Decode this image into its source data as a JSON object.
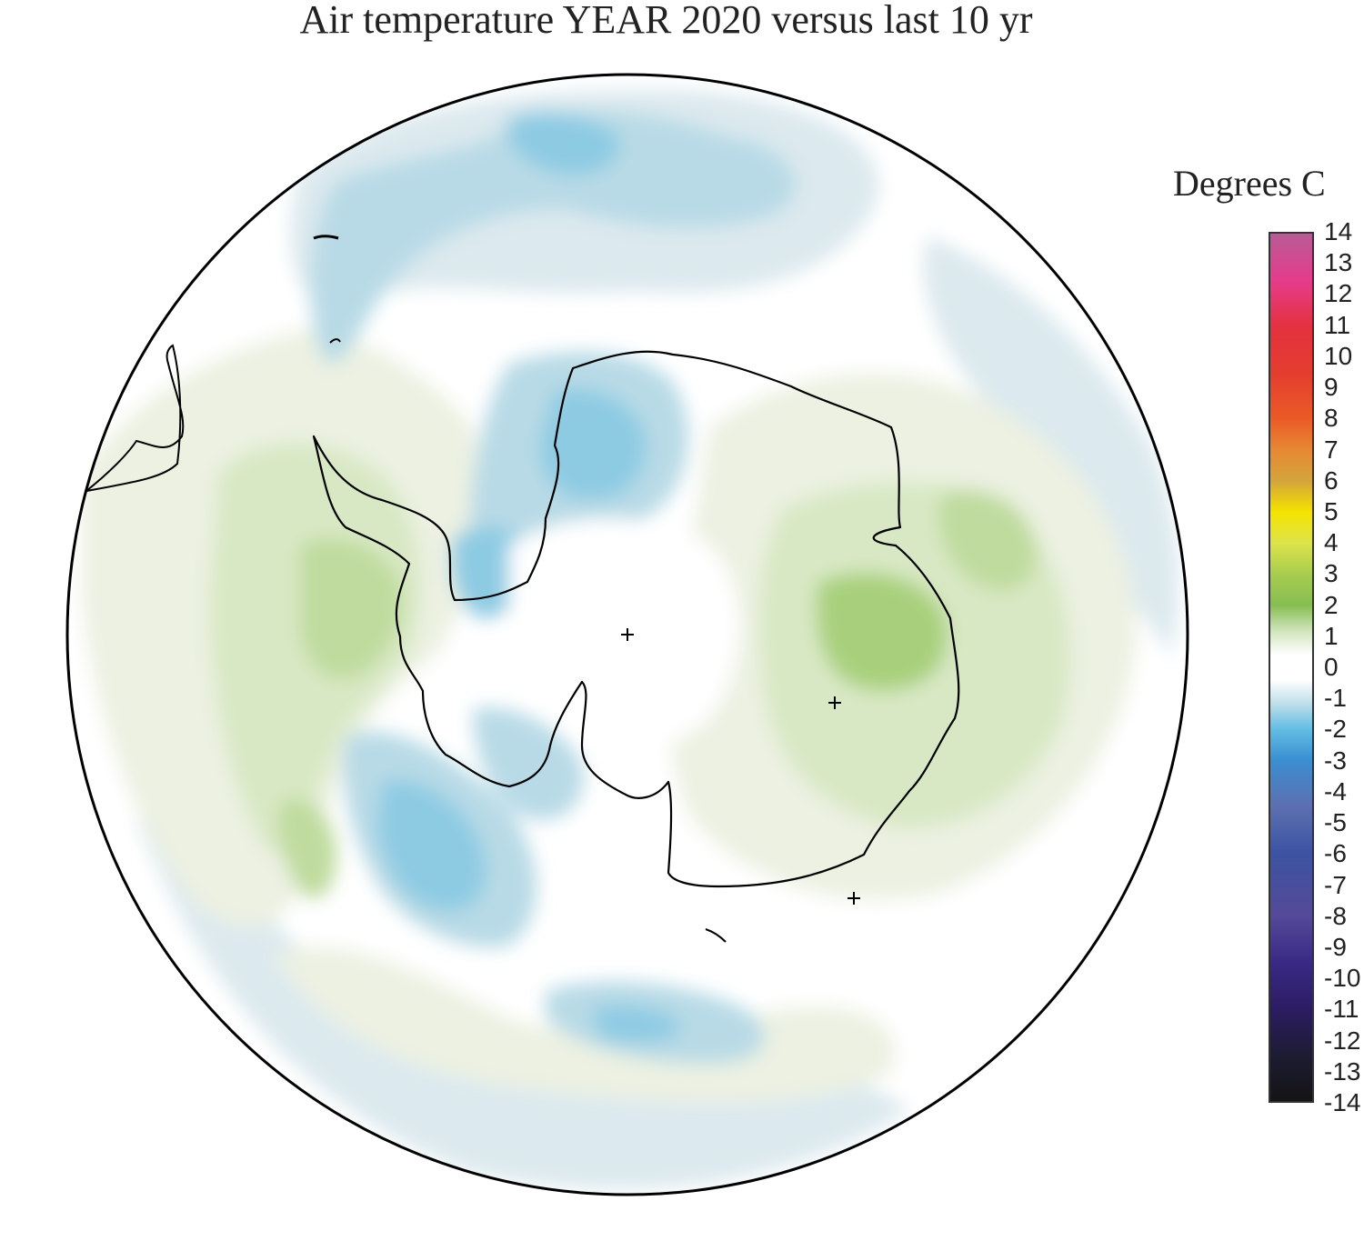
{
  "title": "Air temperature YEAR 2020 versus last 10 yr",
  "legend": {
    "title": "Degrees C",
    "ticks": [
      "14",
      "13",
      "12",
      "11",
      "10",
      "9",
      "8",
      "7",
      "6",
      "5",
      "4",
      "3",
      "2",
      "1",
      "0",
      "-1",
      "-2",
      "-3",
      "-4",
      "-5",
      "-6",
      "-7",
      "-8",
      "-9",
      "-10",
      "-11",
      "-12",
      "-13",
      "-14"
    ],
    "range": [
      -14,
      14
    ],
    "stops": [
      {
        "value": 14,
        "color": "#b75c96"
      },
      {
        "value": 12.5,
        "color": "#e53c8c"
      },
      {
        "value": 11,
        "color": "#e43140"
      },
      {
        "value": 9.5,
        "color": "#e43d2f"
      },
      {
        "value": 8,
        "color": "#ea5b27"
      },
      {
        "value": 7,
        "color": "#e78934"
      },
      {
        "value": 6,
        "color": "#d4a53b"
      },
      {
        "value": 5,
        "color": "#f5e400"
      },
      {
        "value": 4,
        "color": "#dde34a"
      },
      {
        "value": 3,
        "color": "#a7cd4e"
      },
      {
        "value": 2,
        "color": "#86bd52"
      },
      {
        "value": 1.2,
        "color": "#cfe4b9"
      },
      {
        "value": 0.4,
        "color": "#ffffff"
      },
      {
        "value": -0.4,
        "color": "#ffffff"
      },
      {
        "value": -1.2,
        "color": "#bcdde8"
      },
      {
        "value": -2,
        "color": "#62bde4"
      },
      {
        "value": -3,
        "color": "#3a8fd0"
      },
      {
        "value": -4.5,
        "color": "#5d6fb0"
      },
      {
        "value": -6,
        "color": "#3c53a2"
      },
      {
        "value": -8,
        "color": "#544a98"
      },
      {
        "value": -9.5,
        "color": "#3a2a85"
      },
      {
        "value": -11,
        "color": "#2c1c64"
      },
      {
        "value": -12.5,
        "color": "#1d1c33"
      },
      {
        "value": -14,
        "color": "#141414"
      }
    ]
  },
  "map": {
    "projection": "south-polar-stereographic",
    "colors": {
      "pale_blue": "#dce9ee",
      "light_blue": "#b8dae6",
      "mid_blue": "#8dcbe3",
      "blue": "#6bbfe3",
      "pale_green": "#ecf1e2",
      "light_green": "#d8e8c4",
      "green": "#bfdb9e",
      "mid_green": "#a8d07b",
      "coast": "#000000"
    }
  }
}
